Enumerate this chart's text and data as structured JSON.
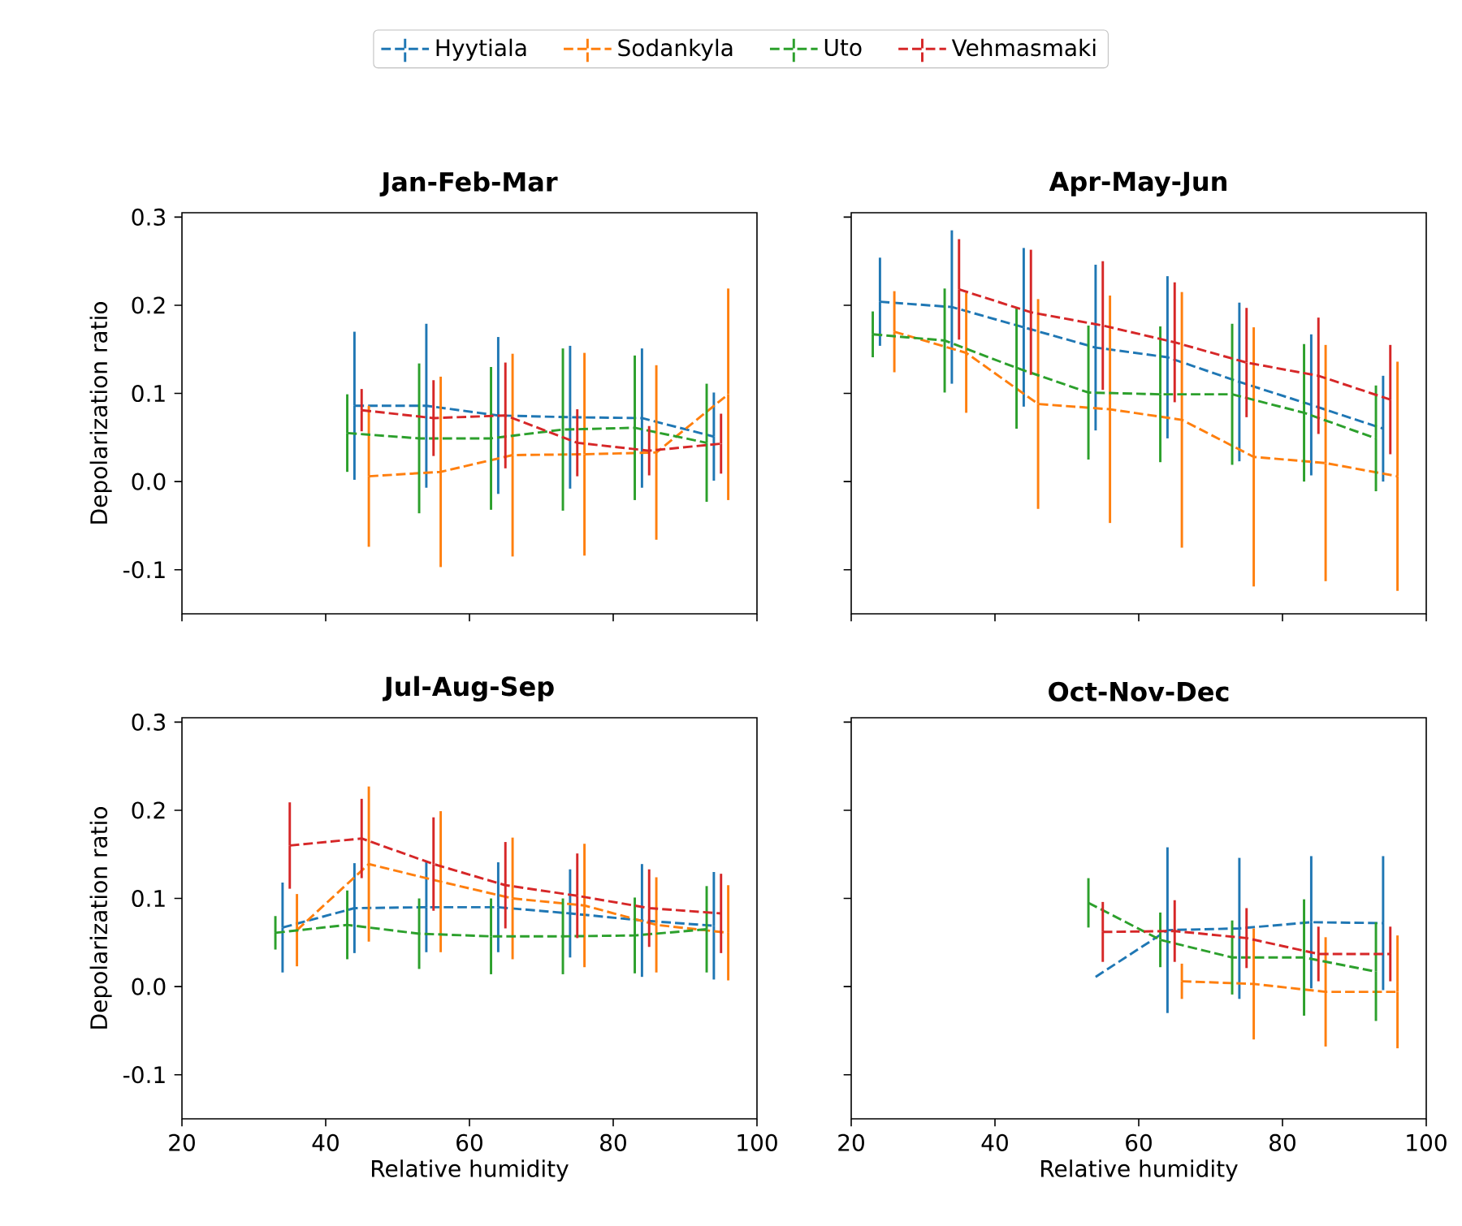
{
  "chart_data": [
    {
      "type": "line",
      "title": "Jan-Feb-Mar",
      "ylabel": "Depolarization ratio",
      "xlim": [
        20,
        100
      ],
      "ylim": [
        -0.15,
        0.305
      ],
      "xticks": [
        20,
        40,
        60,
        80,
        100
      ],
      "yticks": [
        -0.1,
        {
          "value": 0,
          "label": "0.0"
        },
        0.1,
        0.2,
        0.3
      ],
      "tick_labels": "y",
      "legend": "top",
      "marker": "none",
      "line_style": "dashed",
      "series": [
        {
          "name": "Hyytiala",
          "color": "#1f77b4",
          "x": [
            44,
            54,
            64,
            74,
            84,
            94
          ],
          "values": [
            0.086,
            0.086,
            0.075,
            0.073,
            0.072,
            0.051
          ],
          "errors": [
            0.084,
            0.093,
            0.089,
            0.081,
            0.079,
            0.05
          ]
        },
        {
          "name": "Sodankyla",
          "color": "#ff7f0e",
          "x": [
            46,
            56,
            66,
            76,
            86,
            96
          ],
          "values": [
            0.006,
            0.011,
            0.03,
            0.031,
            0.033,
            0.099
          ],
          "errors": [
            0.08,
            0.108,
            0.115,
            0.115,
            0.099,
            0.12
          ]
        },
        {
          "name": "Uto",
          "color": "#2ca02c",
          "x": [
            43,
            53,
            63,
            73,
            83,
            93
          ],
          "values": [
            0.055,
            0.049,
            0.049,
            0.059,
            0.061,
            0.044
          ],
          "errors": [
            0.044,
            0.085,
            0.081,
            0.092,
            0.082,
            0.067
          ]
        },
        {
          "name": "Vehmasmaki",
          "color": "#d62728",
          "x": [
            45,
            55,
            65,
            75,
            85,
            95
          ],
          "values": [
            0.081,
            0.072,
            0.075,
            0.044,
            0.035,
            0.043
          ],
          "errors": [
            0.024,
            0.043,
            0.06,
            0.038,
            0.028,
            0.034
          ]
        }
      ]
    },
    {
      "type": "line",
      "title": "Apr-May-Jun",
      "xlim": [
        20,
        100
      ],
      "ylim": [
        -0.15,
        0.305
      ],
      "xticks": [
        20,
        40,
        60,
        80,
        100
      ],
      "yticks": [
        -0.1,
        0,
        0.1,
        0.2,
        0.3
      ],
      "tick_labels": false,
      "marker": "none",
      "line_style": "dashed",
      "series": [
        {
          "color": "#1f77b4",
          "x": [
            24,
            34,
            44,
            54,
            64,
            74,
            84,
            94
          ],
          "values": [
            0.204,
            0.198,
            0.175,
            0.152,
            0.141,
            0.113,
            0.087,
            0.06
          ],
          "errors": [
            0.05,
            0.087,
            0.09,
            0.094,
            0.092,
            0.09,
            0.08,
            0.06
          ]
        },
        {
          "color": "#ff7f0e",
          "x": [
            26,
            36,
            46,
            56,
            66,
            76,
            86,
            96
          ],
          "values": [
            0.17,
            0.146,
            0.088,
            0.082,
            0.07,
            0.028,
            0.021,
            0.006
          ],
          "errors": [
            0.046,
            0.068,
            0.119,
            0.129,
            0.145,
            0.147,
            0.134,
            0.13
          ]
        },
        {
          "color": "#2ca02c",
          "x": [
            23,
            33,
            43,
            53,
            63,
            73,
            83,
            93
          ],
          "values": [
            0.167,
            0.16,
            0.129,
            0.101,
            0.099,
            0.099,
            0.078,
            0.049
          ],
          "errors": [
            0.026,
            0.059,
            0.069,
            0.076,
            0.077,
            0.08,
            0.078,
            0.06
          ]
        },
        {
          "color": "#d62728",
          "x": [
            35,
            45,
            55,
            65,
            75,
            85,
            95
          ],
          "values": [
            0.218,
            0.192,
            0.177,
            0.158,
            0.135,
            0.12,
            0.093
          ],
          "errors": [
            0.057,
            0.071,
            0.073,
            0.068,
            0.062,
            0.066,
            0.062
          ]
        }
      ]
    },
    {
      "type": "line",
      "title": "Jul-Aug-Sep",
      "xlabel": "Relative humidity",
      "ylabel": "Depolarization ratio",
      "xlim": [
        20,
        100
      ],
      "ylim": [
        -0.15,
        0.305
      ],
      "xticks": [
        20,
        40,
        60,
        80,
        100
      ],
      "yticks": [
        -0.1,
        {
          "value": 0,
          "label": "0.0"
        },
        0.1,
        0.2,
        0.3
      ],
      "marker": "none",
      "line_style": "dashed",
      "series": [
        {
          "color": "#1f77b4",
          "x": [
            34,
            44,
            54,
            64,
            74,
            84,
            94
          ],
          "values": [
            0.067,
            0.089,
            0.09,
            0.09,
            0.083,
            0.075,
            0.069
          ],
          "errors": [
            0.051,
            0.051,
            0.051,
            0.051,
            0.05,
            0.064,
            0.061
          ]
        },
        {
          "color": "#ff7f0e",
          "x": [
            36,
            46,
            56,
            66,
            76,
            86,
            96
          ],
          "values": [
            0.064,
            0.139,
            0.119,
            0.1,
            0.092,
            0.07,
            0.061
          ],
          "errors": [
            0.041,
            0.088,
            0.08,
            0.069,
            0.07,
            0.054,
            0.054
          ]
        },
        {
          "color": "#2ca02c",
          "x": [
            33,
            43,
            53,
            63,
            73,
            83,
            93
          ],
          "values": [
            0.061,
            0.07,
            0.06,
            0.057,
            0.057,
            0.058,
            0.065
          ],
          "errors": [
            0.019,
            0.039,
            0.04,
            0.043,
            0.043,
            0.043,
            0.049
          ]
        },
        {
          "color": "#d62728",
          "x": [
            35,
            45,
            55,
            65,
            75,
            85,
            95
          ],
          "values": [
            0.16,
            0.168,
            0.139,
            0.115,
            0.103,
            0.089,
            0.083
          ],
          "errors": [
            0.049,
            0.045,
            0.053,
            0.049,
            0.048,
            0.044,
            0.045
          ]
        }
      ]
    },
    {
      "type": "line",
      "title": "Oct-Nov-Dec",
      "xlabel": "Relative humidity",
      "xlim": [
        20,
        100
      ],
      "ylim": [
        -0.15,
        0.305
      ],
      "xticks": [
        20,
        40,
        60,
        80,
        100
      ],
      "yticks": [
        -0.1,
        0,
        0.1,
        0.2,
        0.3
      ],
      "tick_labels": "x",
      "marker": "none",
      "line_style": "dashed",
      "series": [
        {
          "color": "#1f77b4",
          "x": [
            54,
            64,
            74,
            84,
            94
          ],
          "values": [
            0.011,
            0.064,
            0.066,
            0.073,
            0.072
          ],
          "errors": [
            null,
            0.094,
            0.08,
            0.075,
            0.076
          ]
        },
        {
          "color": "#ff7f0e",
          "x": [
            66,
            76,
            86,
            96
          ],
          "values": [
            0.006,
            0.003,
            -0.006,
            -0.006
          ],
          "errors": [
            0.02,
            0.063,
            0.062,
            0.064
          ]
        },
        {
          "color": "#2ca02c",
          "x": [
            53,
            63,
            73,
            83,
            93
          ],
          "values": [
            0.095,
            0.053,
            0.033,
            0.033,
            0.017
          ],
          "errors": [
            0.028,
            0.031,
            0.042,
            0.066,
            0.056
          ]
        },
        {
          "color": "#d62728",
          "x": [
            55,
            65,
            75,
            85,
            95
          ],
          "values": [
            0.062,
            0.063,
            0.055,
            0.037,
            0.037
          ],
          "errors": [
            0.034,
            0.035,
            0.034,
            0.031,
            0.031
          ]
        }
      ]
    }
  ]
}
